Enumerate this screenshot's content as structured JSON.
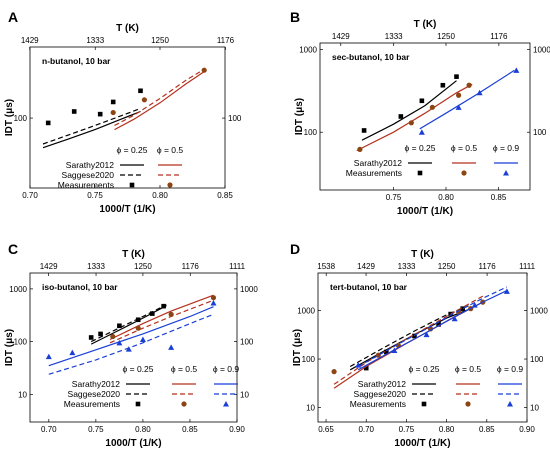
{
  "chart_data": [
    {
      "panel": "A",
      "type": "line",
      "annotation": "n-butanol, 10 bar",
      "xlabel": "1000/T (1/K)",
      "ylabel": "IDT (μs)",
      "top_xlabel": "T (K)",
      "xlim": [
        0.7,
        0.85
      ],
      "ylim": [
        30,
        340
      ],
      "yscale": "log",
      "xticks": [
        "0.70",
        "0.75",
        "0.80",
        "0.85"
      ],
      "top_ticks": [
        "1429",
        "1333",
        "1250",
        "1176"
      ],
      "yticks": [
        "100"
      ],
      "right_yticks": [
        "100"
      ],
      "legend": {
        "phi_headers": [
          "ϕ = 0.25",
          "ϕ = 0.5"
        ],
        "rows": [
          "Sarathy2012",
          "Saggese2020",
          "Measurements"
        ]
      },
      "series": [
        {
          "name": "Sarathy2012",
          "phi": "ϕ = 0.25",
          "color": "#000000",
          "dash": "solid",
          "x": [
            0.71,
            0.73,
            0.75,
            0.77,
            0.785
          ],
          "y": [
            60,
            70,
            82,
            98,
            112
          ]
        },
        {
          "name": "Saggese2020",
          "phi": "ϕ = 0.25",
          "color": "#000000",
          "dash": "dashed",
          "x": [
            0.71,
            0.73,
            0.75,
            0.77,
            0.785
          ],
          "y": [
            64,
            75,
            88,
            104,
            118
          ]
        },
        {
          "name": "Measurements",
          "phi": "ϕ = 0.25",
          "color": "#000000",
          "marker": "square",
          "x": [
            0.714,
            0.734,
            0.754,
            0.764,
            0.785
          ],
          "y": [
            92,
            112,
            107,
            132,
            160
          ]
        },
        {
          "name": "Sarathy2012",
          "phi": "ϕ = 0.5",
          "color": "#b5301c",
          "dash": "solid",
          "x": [
            0.765,
            0.78,
            0.8,
            0.82,
            0.835
          ],
          "y": [
            82,
            98,
            130,
            180,
            226
          ]
        },
        {
          "name": "Saggese2020",
          "phi": "ϕ = 0.5",
          "color": "#b5301c",
          "dash": "dashed",
          "x": [
            0.765,
            0.78,
            0.8,
            0.82,
            0.835
          ],
          "y": [
            88,
            105,
            140,
            192,
            235
          ]
        },
        {
          "name": "Measurements",
          "phi": "ϕ = 0.5",
          "color": "#8b4513",
          "marker": "circle",
          "x": [
            0.764,
            0.788,
            0.834
          ],
          "y": [
            110,
            137,
            228
          ]
        }
      ]
    },
    {
      "panel": "B",
      "type": "line",
      "annotation": "sec-butanol, 10 bar",
      "xlabel": "1000/T (1/K)",
      "ylabel": "IDT (μs)",
      "top_xlabel": "T (K)",
      "xlim": [
        0.68,
        0.88
      ],
      "ylim": [
        20,
        1200
      ],
      "yscale": "log",
      "xticks": [
        "0.75",
        "0.80",
        "0.85"
      ],
      "top_ticks": [
        "1429",
        "1333",
        "1250",
        "1176"
      ],
      "yticks": [
        "100",
        "1000"
      ],
      "right_yticks": [
        "100",
        "1000"
      ],
      "legend": {
        "phi_headers": [
          "ϕ = 0.25",
          "ϕ = 0.5",
          "ϕ = 0.9"
        ],
        "rows": [
          "Sarathy2012",
          "Measurements"
        ]
      },
      "series": [
        {
          "name": "Sarathy2012",
          "phi": "ϕ = 0.25",
          "color": "#000000",
          "dash": "solid",
          "x": [
            0.72,
            0.75,
            0.78,
            0.81
          ],
          "y": [
            80,
            125,
            210,
            420
          ]
        },
        {
          "name": "Measurements",
          "phi": "ϕ = 0.25",
          "color": "#000000",
          "marker": "square",
          "x": [
            0.722,
            0.757,
            0.777,
            0.797,
            0.81
          ],
          "y": [
            105,
            155,
            240,
            370,
            470
          ]
        },
        {
          "name": "Sarathy2012",
          "phi": "ϕ = 0.5",
          "color": "#b5301c",
          "dash": "solid",
          "x": [
            0.715,
            0.75,
            0.78,
            0.81,
            0.825
          ],
          "y": [
            60,
            100,
            170,
            300,
            380
          ]
        },
        {
          "name": "Measurements",
          "phi": "ϕ = 0.5",
          "color": "#8b4513",
          "marker": "circle",
          "x": [
            0.718,
            0.767,
            0.787,
            0.812,
            0.822
          ],
          "y": [
            62,
            130,
            200,
            280,
            370
          ]
        },
        {
          "name": "Sarathy2012",
          "phi": "ϕ = 0.9",
          "color": "#1a3fd6",
          "dash": "solid",
          "x": [
            0.775,
            0.8,
            0.83,
            0.865
          ],
          "y": [
            110,
            170,
            290,
            560
          ]
        },
        {
          "name": "Measurements",
          "phi": "ϕ = 0.9",
          "color": "#1a3fd6",
          "marker": "triangle",
          "x": [
            0.777,
            0.812,
            0.832,
            0.867
          ],
          "y": [
            100,
            200,
            300,
            560
          ]
        }
      ]
    },
    {
      "panel": "C",
      "type": "line",
      "annotation": "iso-butanol, 10 bar",
      "xlabel": "1000/T (1/K)",
      "ylabel": "IDT (μs)",
      "top_xlabel": "T (K)",
      "xlim": [
        0.68,
        0.9
      ],
      "ylim": [
        3,
        2000
      ],
      "yscale": "log",
      "xticks": [
        "0.70",
        "0.75",
        "0.80",
        "0.85",
        "0.90"
      ],
      "top_ticks": [
        "1429",
        "1333",
        "1250",
        "1176",
        "1111"
      ],
      "yticks": [
        "10",
        "100",
        "1000"
      ],
      "right_yticks": [
        "10",
        "100",
        "1000"
      ],
      "legend": {
        "phi_headers": [
          "ϕ = 0.25",
          "ϕ = 0.5",
          "ϕ = 0.9"
        ],
        "rows": [
          "Sarathy2012",
          "Saggese2020",
          "Measurements"
        ]
      },
      "series": [
        {
          "name": "Sarathy2012",
          "phi": "ϕ = 0.25",
          "color": "#000000",
          "dash": "solid",
          "x": [
            0.745,
            0.77,
            0.8,
            0.825
          ],
          "y": [
            90,
            150,
            280,
            480
          ]
        },
        {
          "name": "Saggese2020",
          "phi": "ϕ = 0.25",
          "color": "#000000",
          "dash": "dashed",
          "x": [
            0.745,
            0.77,
            0.8,
            0.825
          ],
          "y": [
            100,
            165,
            300,
            500
          ]
        },
        {
          "name": "Measurements",
          "phi": "ϕ = 0.25",
          "color": "#000000",
          "marker": "square",
          "x": [
            0.745,
            0.755,
            0.775,
            0.795,
            0.81,
            0.822
          ],
          "y": [
            120,
            140,
            200,
            260,
            340,
            470
          ]
        },
        {
          "name": "Sarathy2012",
          "phi": "ϕ = 0.5",
          "color": "#b5301c",
          "dash": "solid",
          "x": [
            0.765,
            0.8,
            0.83,
            0.875
          ],
          "y": [
            110,
            220,
            380,
            760
          ]
        },
        {
          "name": "Saggese2020",
          "phi": "ϕ = 0.5",
          "color": "#b5301c",
          "dash": "dashed",
          "x": [
            0.765,
            0.8,
            0.83,
            0.875
          ],
          "y": [
            95,
            180,
            300,
            610
          ]
        },
        {
          "name": "Measurements",
          "phi": "ϕ = 0.5",
          "color": "#8b4513",
          "marker": "circle",
          "x": [
            0.768,
            0.795,
            0.83,
            0.875
          ],
          "y": [
            125,
            180,
            330,
            680
          ]
        },
        {
          "name": "Sarathy2012",
          "phi": "ϕ = 0.9",
          "color": "#1a3fd6",
          "dash": "solid",
          "x": [
            0.7,
            0.75,
            0.8,
            0.85,
            0.875
          ],
          "y": [
            35,
            70,
            140,
            300,
            460
          ]
        },
        {
          "name": "Saggese2020",
          "phi": "ϕ = 0.9",
          "color": "#1a3fd6",
          "dash": "dashed",
          "x": [
            0.7,
            0.75,
            0.8,
            0.85,
            0.875
          ],
          "y": [
            24,
            45,
            95,
            220,
            330
          ]
        },
        {
          "name": "Measurements",
          "phi": "ϕ = 0.9",
          "color": "#1a3fd6",
          "marker": "triangle",
          "x": [
            0.7,
            0.725,
            0.775,
            0.785,
            0.8,
            0.83,
            0.875
          ],
          "y": [
            52,
            62,
            95,
            72,
            110,
            78,
            540
          ]
        }
      ]
    },
    {
      "panel": "D",
      "type": "line",
      "annotation": "tert-butanol, 10 bar",
      "xlabel": "1000/T (1/K)",
      "ylabel": "IDT (μs)",
      "top_xlabel": "T (K)",
      "xlim": [
        0.64,
        0.9
      ],
      "ylim": [
        5,
        6000
      ],
      "yscale": "log",
      "xticks": [
        "0.65",
        "0.70",
        "0.75",
        "0.80",
        "0.85",
        "0.90"
      ],
      "top_ticks": [
        "1538",
        "1429",
        "1333",
        "1250",
        "1176",
        "1111"
      ],
      "yticks": [
        "10",
        "100",
        "1000"
      ],
      "right_yticks": [
        "10",
        "100",
        "1000"
      ],
      "legend": {
        "phi_headers": [
          "ϕ = 0.25",
          "ϕ = 0.5",
          "ϕ = 0.9"
        ],
        "rows": [
          "Sarathy2012",
          "Saggese2020",
          "Measurements"
        ]
      },
      "series": [
        {
          "name": "Sarathy2012",
          "phi": "ϕ = 0.25",
          "color": "#000000",
          "dash": "solid",
          "x": [
            0.68,
            0.72,
            0.76,
            0.8,
            0.83
          ],
          "y": [
            60,
            140,
            320,
            700,
            1100
          ]
        },
        {
          "name": "Saggese2020",
          "phi": "ϕ = 0.25",
          "color": "#000000",
          "dash": "dashed",
          "x": [
            0.68,
            0.72,
            0.76,
            0.8,
            0.83
          ],
          "y": [
            70,
            165,
            380,
            820,
            1300
          ]
        },
        {
          "name": "Measurements",
          "phi": "ϕ = 0.25",
          "color": "#000000",
          "marker": "square",
          "x": [
            0.7,
            0.725,
            0.76,
            0.79,
            0.805,
            0.82
          ],
          "y": [
            65,
            140,
            300,
            520,
            850,
            1100
          ]
        },
        {
          "name": "Sarathy2012",
          "phi": "ϕ = 0.5",
          "color": "#b5301c",
          "dash": "solid",
          "x": [
            0.66,
            0.7,
            0.75,
            0.8,
            0.845
          ],
          "y": [
            25,
            70,
            210,
            600,
            1500
          ]
        },
        {
          "name": "Saggese2020",
          "phi": "ϕ = 0.5",
          "color": "#b5301c",
          "dash": "dashed",
          "x": [
            0.66,
            0.7,
            0.75,
            0.8,
            0.845
          ],
          "y": [
            30,
            85,
            260,
            760,
            2000
          ]
        },
        {
          "name": "Measurements",
          "phi": "ϕ = 0.5",
          "color": "#8b4513",
          "marker": "circle",
          "x": [
            0.66,
            0.715,
            0.74,
            0.78,
            0.815,
            0.83,
            0.845
          ],
          "y": [
            55,
            120,
            190,
            420,
            950,
            1100,
            1500
          ]
        },
        {
          "name": "Sarathy2012",
          "phi": "ϕ = 0.9",
          "color": "#1a3fd6",
          "dash": "solid",
          "x": [
            0.69,
            0.73,
            0.77,
            0.81,
            0.845,
            0.875
          ],
          "y": [
            60,
            140,
            320,
            750,
            1500,
            2600
          ]
        },
        {
          "name": "Saggese2020",
          "phi": "ϕ = 0.9",
          "color": "#1a3fd6",
          "dash": "dashed",
          "x": [
            0.69,
            0.73,
            0.77,
            0.81,
            0.845,
            0.875
          ],
          "y": [
            70,
            165,
            380,
            900,
            1800,
            3100
          ]
        },
        {
          "name": "Measurements",
          "phi": "ϕ = 0.9",
          "color": "#1a3fd6",
          "marker": "triangle",
          "x": [
            0.69,
            0.735,
            0.775,
            0.81,
            0.835,
            0.875
          ],
          "y": [
            75,
            150,
            320,
            680,
            1300,
            2500
          ]
        }
      ]
    }
  ]
}
